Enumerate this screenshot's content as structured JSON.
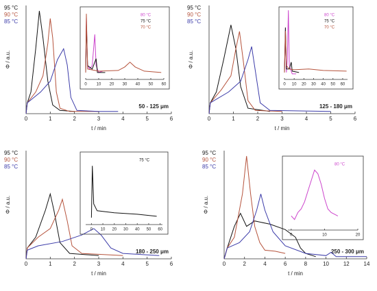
{
  "chart_data": [
    {
      "type": "line",
      "ylabel": "Φ  /  a.u.",
      "xlabel": "t  /  min",
      "label": "50 - 125 μm",
      "xlim": [
        0,
        6
      ],
      "xticks": [
        0,
        1,
        2,
        3,
        4,
        5,
        6
      ],
      "ylim": [
        0,
        1
      ],
      "yticks": [],
      "series": [
        {
          "name": "95 °C",
          "color": "#111111",
          "x": [
            0,
            0.05,
            0.2,
            0.4,
            0.55,
            0.7,
            0.9,
            1.1,
            1.4,
            2
          ],
          "values": [
            0,
            0.1,
            0.2,
            0.6,
            0.95,
            0.7,
            0.3,
            0.08,
            0.03,
            0.02
          ]
        },
        {
          "name": "90 °C",
          "color": "#b5523b",
          "x": [
            0,
            0.05,
            0.4,
            0.7,
            0.9,
            1.0,
            1.1,
            1.25,
            1.4,
            1.8,
            3
          ],
          "values": [
            0,
            0.1,
            0.2,
            0.35,
            0.65,
            0.88,
            0.7,
            0.2,
            0.05,
            0.02,
            0.02
          ]
        },
        {
          "name": "85 °C",
          "color": "#3a3aa8",
          "x": [
            0,
            0.05,
            0.6,
            1.0,
            1.3,
            1.55,
            1.7,
            1.85,
            2.1,
            3,
            3.8
          ],
          "values": [
            0,
            0.1,
            0.2,
            0.3,
            0.5,
            0.6,
            0.45,
            0.15,
            0.03,
            0.02,
            0.02
          ]
        }
      ],
      "inset": {
        "xlim": [
          0,
          60
        ],
        "xticks": [
          0,
          10,
          20,
          30,
          40,
          50,
          60
        ],
        "ylim": [
          0,
          1
        ],
        "series": [
          {
            "name": "80 °C",
            "color": "#cc44cc",
            "x": [
              0,
              0.5,
              1.5,
              3,
              5,
              7,
              8,
              10,
              13
            ],
            "values": [
              0.1,
              0.9,
              0.2,
              0.15,
              0.2,
              0.65,
              0.2,
              0.1,
              0.12
            ]
          },
          {
            "name": "75 °C",
            "color": "#111111",
            "x": [
              0,
              0.5,
              1.5,
              5,
              8,
              9,
              15
            ],
            "values": [
              0.1,
              0.8,
              0.2,
              0.15,
              0.3,
              0.1,
              0.1
            ]
          },
          {
            "name": "70 °C",
            "color": "#b5523b",
            "x": [
              0,
              0.5,
              1.5,
              10,
              25,
              30,
              34,
              38,
              45,
              58
            ],
            "values": [
              0.1,
              0.95,
              0.15,
              0.12,
              0.13,
              0.18,
              0.25,
              0.18,
              0.12,
              0.1
            ]
          }
        ]
      }
    },
    {
      "type": "line",
      "ylabel": "Φ  /  a.u.",
      "xlabel": "t  /  min",
      "label": "125 - 180 μm",
      "xlim": [
        0,
        6
      ],
      "xticks": [
        0,
        1,
        2,
        3,
        4,
        5,
        6
      ],
      "ylim": [
        0,
        1
      ],
      "yticks": [],
      "series": [
        {
          "name": "95 °C",
          "color": "#111111",
          "x": [
            0,
            0.05,
            0.3,
            0.6,
            0.9,
            1.1,
            1.3,
            1.6,
            2.5
          ],
          "values": [
            0,
            0.1,
            0.2,
            0.5,
            0.82,
            0.6,
            0.25,
            0.05,
            0.02
          ]
        },
        {
          "name": "90 °C",
          "color": "#b5523b",
          "x": [
            0,
            0.05,
            0.5,
            0.9,
            1.1,
            1.25,
            1.4,
            1.6,
            1.9,
            3
          ],
          "values": [
            0,
            0.1,
            0.22,
            0.35,
            0.6,
            0.76,
            0.5,
            0.12,
            0.03,
            0.02
          ]
        },
        {
          "name": "85 °C",
          "color": "#3a3aa8",
          "x": [
            0,
            0.05,
            0.8,
            1.3,
            1.6,
            1.75,
            1.9,
            2.1,
            2.5,
            5
          ],
          "values": [
            0,
            0.1,
            0.2,
            0.3,
            0.5,
            0.62,
            0.4,
            0.1,
            0.03,
            0.02
          ]
        }
      ],
      "inset": {
        "xlim": [
          0,
          65
        ],
        "xticks": [
          0,
          10,
          20,
          30,
          40,
          50,
          60
        ],
        "ylim": [
          0,
          1
        ],
        "series": [
          {
            "name": "80 °C",
            "color": "#cc44cc",
            "x": [
              0,
              1,
              2,
              3,
              4,
              5,
              8,
              12
            ],
            "values": [
              0.1,
              0.75,
              0.1,
              0.3,
              1.0,
              0.2,
              0.08,
              0.08
            ]
          },
          {
            "name": "75 °C",
            "color": "#111111",
            "x": [
              0,
              1,
              2,
              5,
              7,
              8,
              15
            ],
            "values": [
              0.1,
              0.75,
              0.15,
              0.15,
              0.25,
              0.12,
              0.1
            ]
          },
          {
            "name": "70 °C",
            "color": "#b5523b",
            "x": [
              0,
              1,
              2,
              5,
              10,
              25,
              40,
              64
            ],
            "values": [
              0.1,
              0.7,
              0.2,
              0.15,
              0.14,
              0.15,
              0.13,
              0.12
            ]
          }
        ]
      }
    },
    {
      "type": "line",
      "ylabel": "Φ  /  a.u.",
      "xlabel": "t  /  min",
      "label": "180 - 250 μm",
      "xlim": [
        0,
        6
      ],
      "xticks": [
        0,
        1,
        2,
        3,
        4,
        5,
        6
      ],
      "ylim": [
        0,
        1
      ],
      "yticks": [],
      "series": [
        {
          "name": "95 °C",
          "color": "#111111",
          "x": [
            0,
            0.05,
            0.4,
            0.8,
            1.0,
            1.15,
            1.4,
            1.8,
            3
          ],
          "values": [
            0,
            0.1,
            0.2,
            0.45,
            0.6,
            0.45,
            0.15,
            0.05,
            0.03
          ]
        },
        {
          "name": "90 °C",
          "color": "#b5523b",
          "x": [
            0,
            0.05,
            0.5,
            1.0,
            1.35,
            1.5,
            1.7,
            1.9,
            2.3,
            4
          ],
          "values": [
            0,
            0.1,
            0.2,
            0.28,
            0.45,
            0.55,
            0.35,
            0.12,
            0.05,
            0.03
          ]
        },
        {
          "name": "85 °C",
          "color": "#3a3aa8",
          "x": [
            0,
            0.05,
            0.5,
            1.5,
            2.3,
            2.8,
            3.1,
            3.5,
            4,
            5.5
          ],
          "values": [
            0,
            0.08,
            0.12,
            0.16,
            0.22,
            0.28,
            0.22,
            0.1,
            0.05,
            0.03
          ]
        }
      ],
      "inset": {
        "xlim": [
          -5,
          62
        ],
        "xticks": [
          0,
          10,
          20,
          30,
          40,
          50,
          60
        ],
        "ylim": [
          0,
          1
        ],
        "series": [
          {
            "name": "75 °C",
            "color": "#111111",
            "x": [
              0,
              0.8,
              2,
              5,
              20,
              40,
              57
            ],
            "values": [
              0.1,
              0.85,
              0.3,
              0.2,
              0.17,
              0.15,
              0.12
            ]
          }
        ]
      }
    },
    {
      "type": "line",
      "ylabel": "Φ  /  a.u.",
      "xlabel": "t  /  min",
      "label": "250 - 300 μm",
      "xlim": [
        0,
        14
      ],
      "xticks": [
        0,
        2,
        4,
        6,
        8,
        10,
        12,
        14
      ],
      "ylim": [
        0,
        1
      ],
      "yticks": [],
      "series": [
        {
          "name": "95 °C",
          "color": "#111111",
          "x": [
            0,
            0.3,
            1,
            1.6,
            2.2,
            3,
            4.5,
            6,
            7,
            7.5,
            8,
            9
          ],
          "values": [
            0,
            0.1,
            0.3,
            0.42,
            0.3,
            0.35,
            0.32,
            0.27,
            0.2,
            0.1,
            0.05,
            0.02
          ]
        },
        {
          "name": "90 °C",
          "color": "#b5523b",
          "x": [
            0,
            0.3,
            1,
            1.8,
            2.2,
            2.6,
            3,
            3.5,
            4,
            5,
            6
          ],
          "values": [
            0,
            0.1,
            0.2,
            0.6,
            0.95,
            0.6,
            0.3,
            0.15,
            0.08,
            0.07,
            0.05
          ]
        },
        {
          "name": "85 °C",
          "color": "#3a3aa8",
          "x": [
            0,
            0.3,
            1.5,
            2.5,
            3.2,
            3.6,
            4,
            4.8,
            6,
            8,
            10,
            10.5,
            11,
            14
          ],
          "values": [
            0,
            0.1,
            0.15,
            0.25,
            0.45,
            0.6,
            0.45,
            0.25,
            0.12,
            0.05,
            0.03,
            0.06,
            0.02,
            0.02
          ]
        }
      ],
      "inset": {
        "xlim": [
          -1,
          20
        ],
        "xticks": [
          0,
          10,
          20
        ],
        "ylim": [
          0,
          1
        ],
        "series": [
          {
            "name": "80 °C",
            "color": "#cc44cc",
            "x": [
              0,
              1,
              2,
              3,
              4,
              5,
              6,
              7,
              8,
              9,
              10,
              11,
              12,
              14
            ],
            "values": [
              0.2,
              0.15,
              0.25,
              0.3,
              0.4,
              0.55,
              0.7,
              0.85,
              0.8,
              0.65,
              0.45,
              0.3,
              0.25,
              0.2
            ]
          }
        ]
      }
    }
  ]
}
